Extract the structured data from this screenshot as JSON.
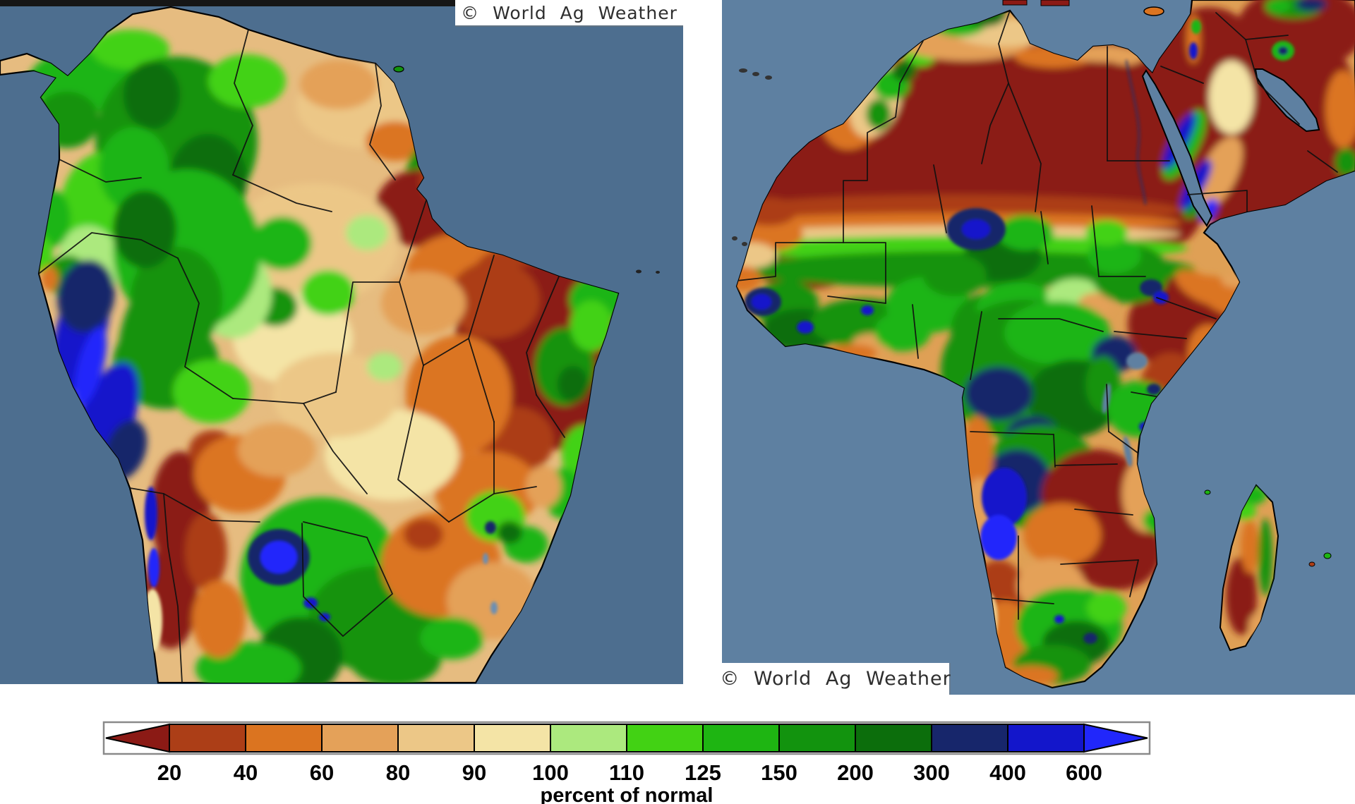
{
  "maps": {
    "south_america": {
      "watermark": "© World Ag Weather",
      "ocean_color": "#4D6E8F"
    },
    "africa": {
      "watermark": "© World Ag Weather",
      "ocean_color": "#5E80A1"
    }
  },
  "legend": {
    "caption": "percent of normal",
    "ticks": [
      "20",
      "40",
      "60",
      "80",
      "90",
      "100",
      "110",
      "125",
      "150",
      "200",
      "300",
      "400",
      "600"
    ],
    "segments": [
      {
        "range": "<20",
        "color": "#8B1A15"
      },
      {
        "range": "20-40",
        "color": "#AC3E17"
      },
      {
        "range": "40-60",
        "color": "#DB7420"
      },
      {
        "range": "60-80",
        "color": "#E4A159"
      },
      {
        "range": "80-90",
        "color": "#ECC787"
      },
      {
        "range": "90-100",
        "color": "#F4E4A6"
      },
      {
        "range": "100-110",
        "color": "#ACE97E"
      },
      {
        "range": "110-125",
        "color": "#42D214"
      },
      {
        "range": "125-150",
        "color": "#1EB512"
      },
      {
        "range": "150-200",
        "color": "#12930E"
      },
      {
        "range": "200-300",
        "color": "#0C6E0C"
      },
      {
        "range": "300-400",
        "color": "#17266B"
      },
      {
        "range": "400-600",
        "color": "#1316CB"
      },
      {
        "range": ">600",
        "color": "#2127FB"
      }
    ]
  }
}
